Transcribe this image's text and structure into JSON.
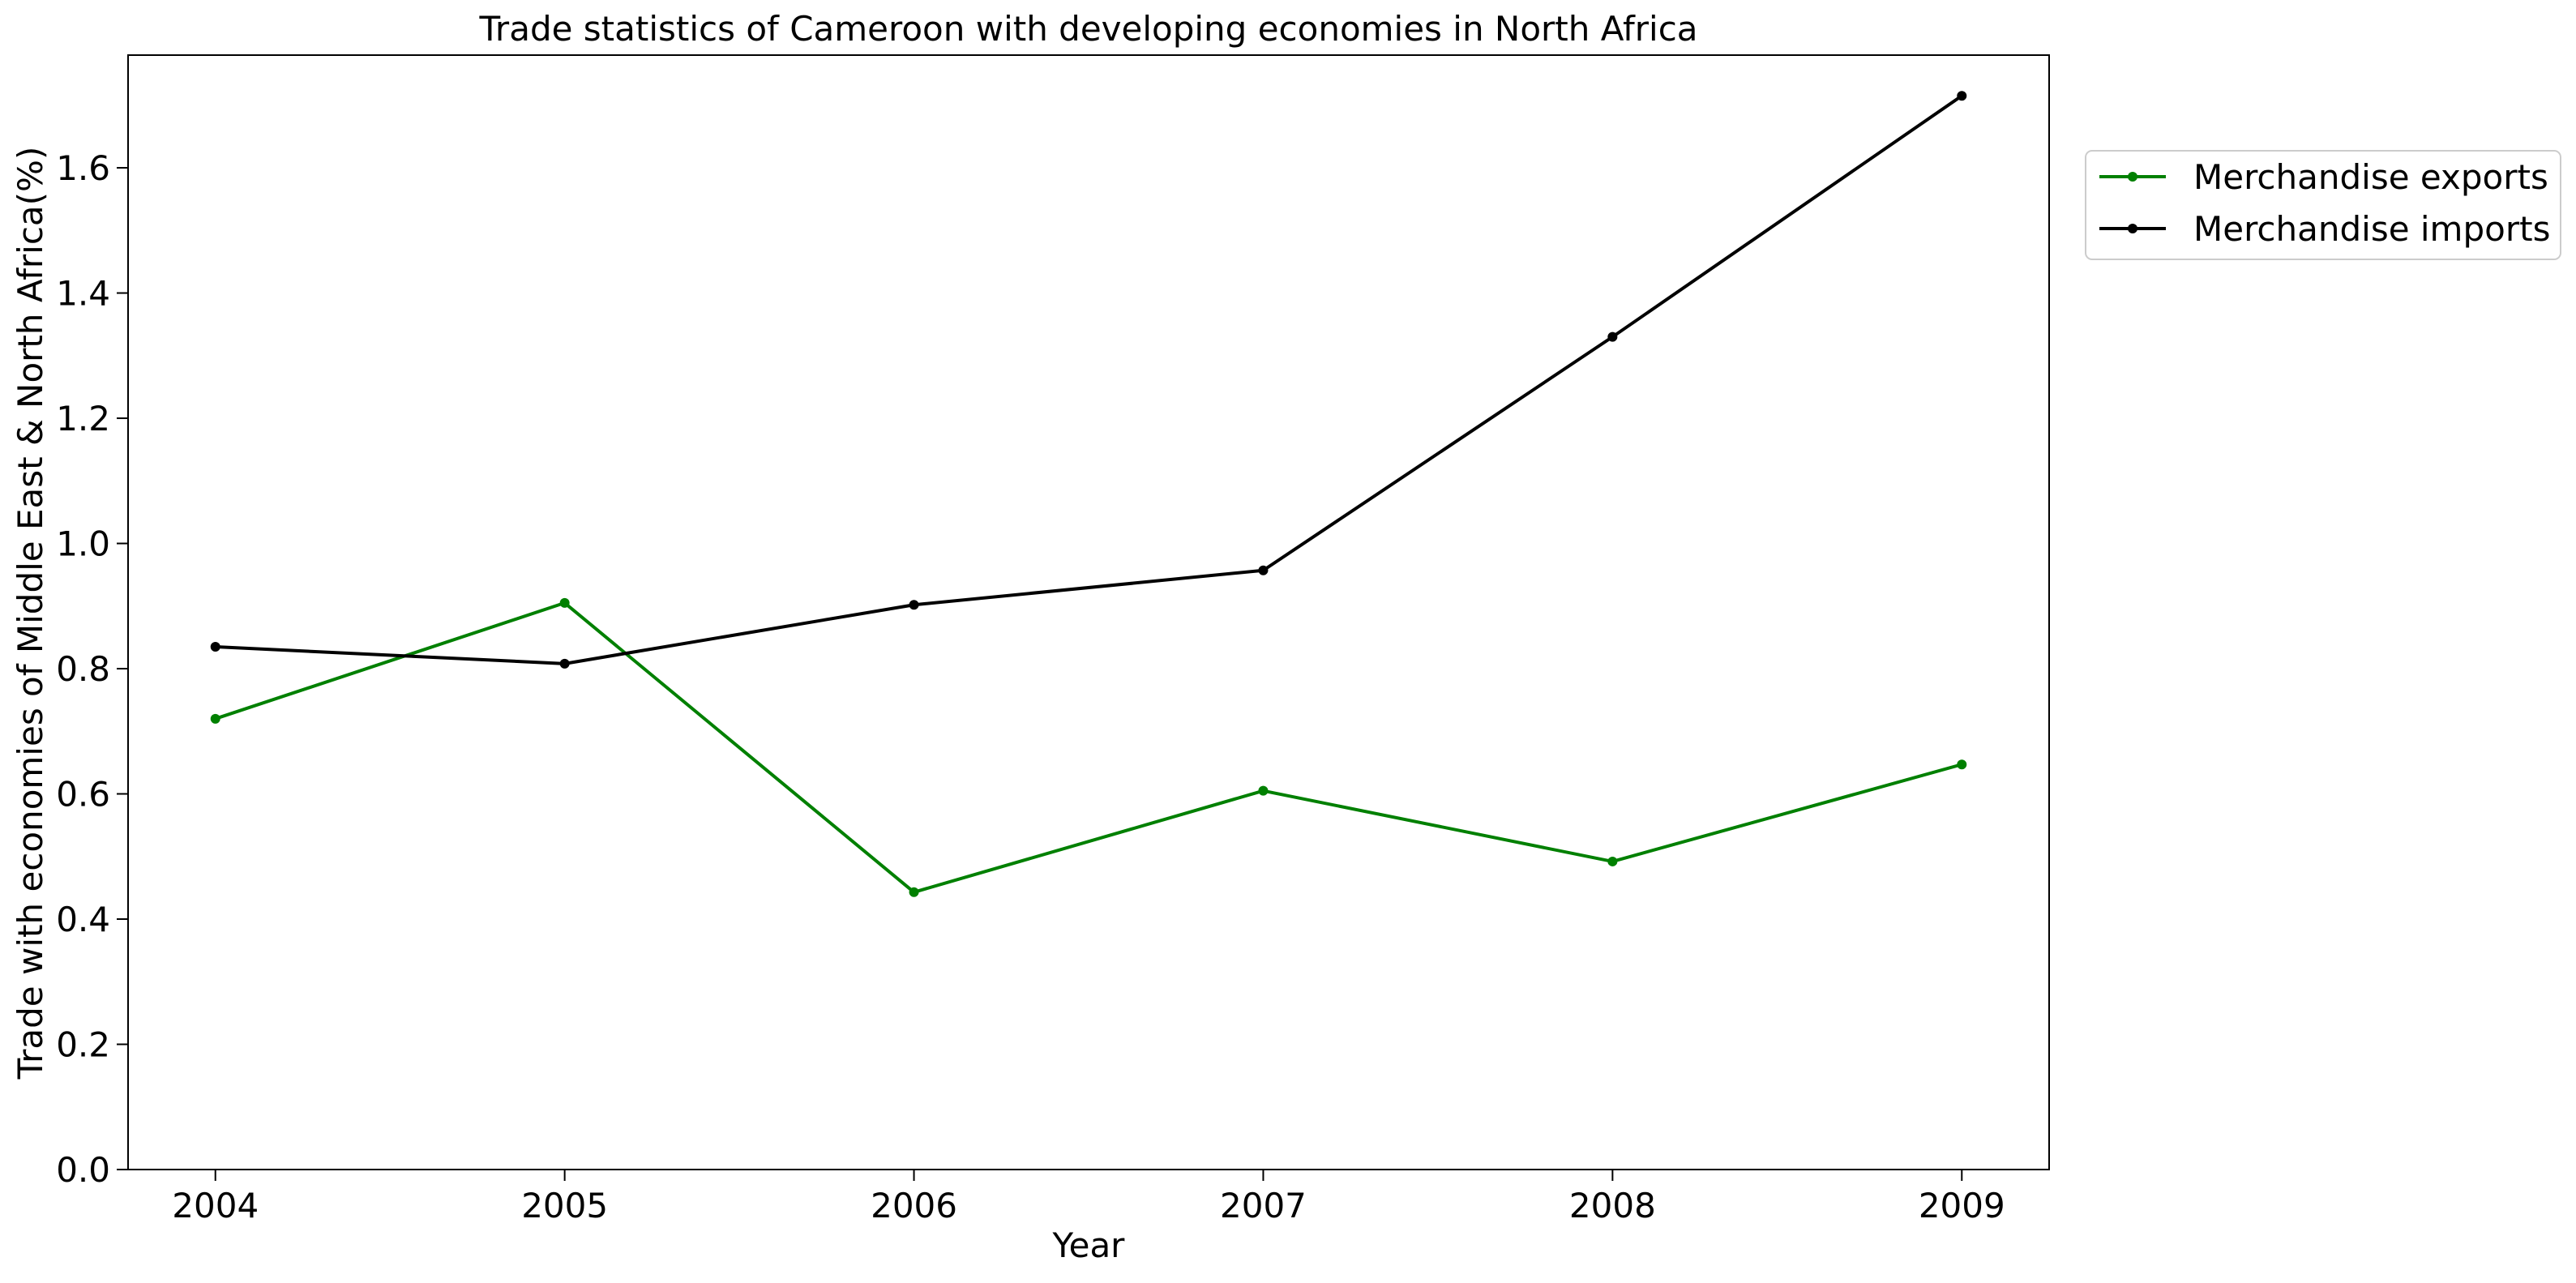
{
  "chart_data": {
    "type": "line",
    "title": "Trade statistics of Cameroon with developing economies in North Africa",
    "xlabel": "Year",
    "ylabel": "Trade with economies of Middle East & North Africa(%)",
    "x": [
      2004,
      2005,
      2006,
      2007,
      2008,
      2009
    ],
    "x_tick_labels": [
      "2004",
      "2005",
      "2006",
      "2007",
      "2008",
      "2009"
    ],
    "y_ticks": [
      0.0,
      0.2,
      0.4,
      0.6,
      0.8,
      1.0,
      1.2,
      1.4,
      1.6
    ],
    "y_tick_labels": [
      "0.0",
      "0.2",
      "0.4",
      "0.6",
      "0.8",
      "1.0",
      "1.2",
      "1.4",
      "1.6"
    ],
    "xlim": [
      2003.75,
      2009.25
    ],
    "ylim": [
      0,
      1.78
    ],
    "grid": false,
    "legend_position": "outside-upper-right",
    "series": [
      {
        "name": "Merchandise exports",
        "color": "#008000",
        "values": [
          0.72,
          0.905,
          0.443,
          0.605,
          0.492,
          0.647
        ]
      },
      {
        "name": "Merchandise imports",
        "color": "#000000",
        "values": [
          0.835,
          0.808,
          0.902,
          0.957,
          1.33,
          1.715
        ]
      }
    ]
  }
}
